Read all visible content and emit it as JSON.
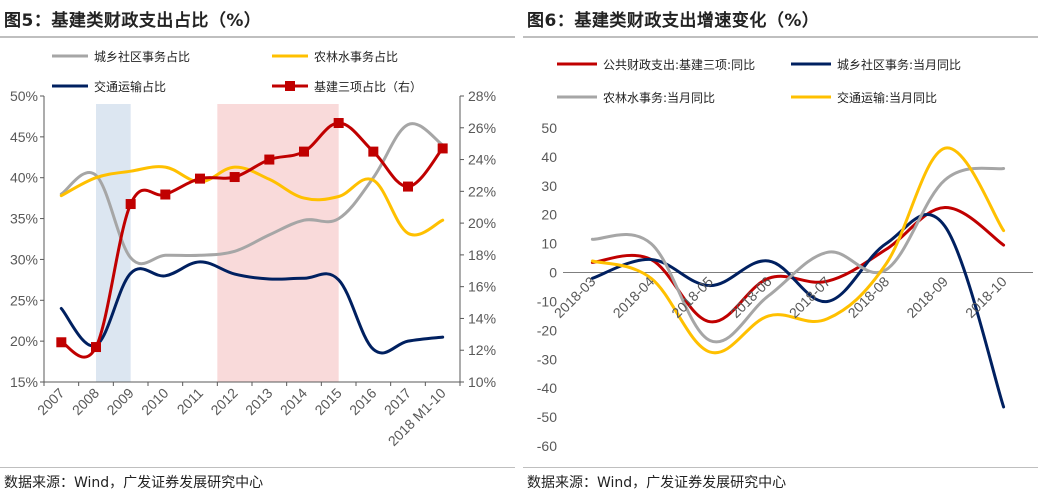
{
  "left": {
    "title": "图5：基建类财政支出占比（%）",
    "source": "数据来源：Wind，广发证券发展研究中心",
    "chart_data": {
      "type": "line",
      "categories": [
        "2007",
        "2008",
        "2009",
        "2010",
        "2011",
        "2012",
        "2013",
        "2014",
        "2015",
        "2016",
        "2017",
        "2018 M1-10"
      ],
      "y_left_ticks": [
        "50%",
        "45%",
        "40%",
        "35%",
        "30%",
        "25%",
        "20%",
        "15%"
      ],
      "y_right_ticks": [
        "28%",
        "26%",
        "24%",
        "22%",
        "20%",
        "18%",
        "16%",
        "14%",
        "12%",
        "10%"
      ],
      "ylim_left": [
        15,
        50
      ],
      "ylim_right": [
        10,
        28
      ],
      "shaded_periods": [
        {
          "from": 2008,
          "to": 2009,
          "color": "#dce6f1"
        },
        {
          "from": 2011.5,
          "to": 2015,
          "color": "#f9dada"
        }
      ],
      "series": [
        {
          "name": "城乡社区事务占比",
          "axis": "left",
          "color": "#a6a6a6",
          "marker": false,
          "values": [
            38.0,
            40.3,
            30.2,
            30.5,
            30.5,
            31.0,
            33.0,
            34.8,
            35.0,
            40.0,
            46.5,
            44.0
          ]
        },
        {
          "name": "农林水事务占比",
          "axis": "left",
          "color": "#ffc000",
          "marker": false,
          "values": [
            37.8,
            40.0,
            40.8,
            41.3,
            39.5,
            41.3,
            39.8,
            37.5,
            37.7,
            39.7,
            33.2,
            34.8
          ]
        },
        {
          "name": "交通运输占比",
          "axis": "left",
          "color": "#002060",
          "marker": false,
          "values": [
            24.0,
            19.5,
            28.3,
            28.0,
            29.7,
            28.2,
            27.6,
            27.7,
            27.5,
            19.0,
            20.0,
            20.5
          ]
        },
        {
          "name": "基建三项占比（右）",
          "axis": "right",
          "color": "#c00000",
          "marker": true,
          "values": [
            12.5,
            12.2,
            21.2,
            21.8,
            22.8,
            22.9,
            24.0,
            24.5,
            26.3,
            24.5,
            22.3,
            24.7
          ]
        }
      ]
    }
  },
  "right": {
    "title": "图6：基建类财政支出增速变化（%）",
    "source": "数据来源：Wind，广发证券发展研究中心",
    "chart_data": {
      "type": "line",
      "categories": [
        "2018-03",
        "2018-04",
        "2018-05",
        "2018-06",
        "2018-07",
        "2018-08",
        "2018-09",
        "2018-10"
      ],
      "y_ticks": [
        "50",
        "40",
        "30",
        "20",
        "10",
        "0",
        "-10",
        "-20",
        "-30",
        "-40",
        "-50",
        "-60"
      ],
      "ylim": [
        -60,
        50
      ],
      "series": [
        {
          "name": "公共财政支出:基建三项:同比",
          "color": "#c00000",
          "values": [
            3.5,
            4.5,
            -17.0,
            -2.0,
            -3.0,
            8.0,
            22.5,
            9.5
          ]
        },
        {
          "name": "城乡社区事务:当月同比",
          "color": "#002060",
          "values": [
            -2.0,
            4.5,
            -4.5,
            4.0,
            -10.0,
            10.0,
            16.0,
            -46.5
          ]
        },
        {
          "name": "农林水事务:当月同比",
          "color": "#a6a6a6",
          "values": [
            11.5,
            10.0,
            -23.5,
            -8.0,
            7.0,
            1.0,
            32.0,
            36.0
          ]
        },
        {
          "name": "交通运输:当月同比",
          "color": "#ffc000",
          "values": [
            4.0,
            -2.0,
            -27.5,
            -15.0,
            -16.0,
            3.0,
            43.0,
            14.5
          ]
        }
      ]
    }
  }
}
